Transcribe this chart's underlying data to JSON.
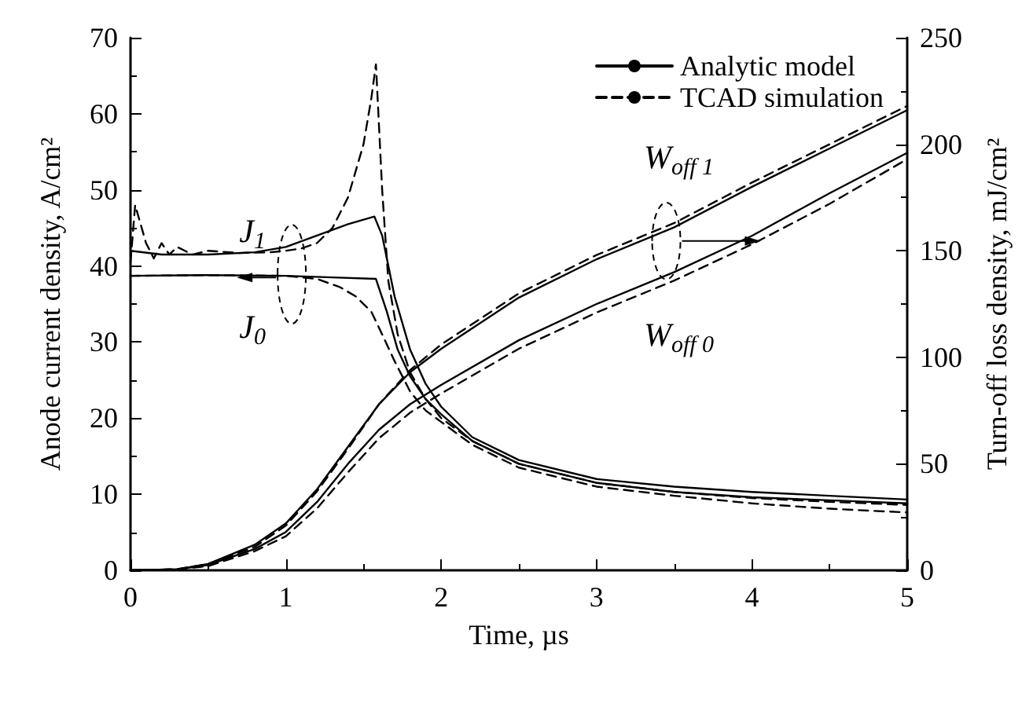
{
  "chart_data": {
    "type": "line",
    "xlabel": "Time, µs",
    "ylabel": "Anode current density, A/cm²",
    "y2label": "Turn-off loss density, mJ/cm²",
    "xlim": [
      0,
      5
    ],
    "xticks": [
      0,
      1,
      2,
      3,
      4,
      5
    ],
    "ylim": [
      0,
      70
    ],
    "yticks": [
      0,
      10,
      20,
      30,
      40,
      50,
      60,
      70
    ],
    "y2lim": [
      0,
      250
    ],
    "y2ticks": [
      0,
      50,
      100,
      150,
      200,
      250
    ],
    "grid": false,
    "legend": "top right",
    "marker": "none",
    "annotations": [
      "J$_{1}$",
      "J$_{0}$",
      "W$_{off 1}$",
      "W$_{off 0}$"
    ],
    "series": [
      {
        "name": "Analytic model",
        "color": "#000000",
        "line_style": "solid",
        "x": [
          0,
          0.2,
          0.5,
          0.8,
          1.0,
          1.2,
          1.4,
          1.57,
          1.62,
          1.7,
          1.8,
          1.9,
          2.0,
          2.2,
          2.5,
          3,
          3.5,
          4,
          4.5,
          5
        ],
        "values": [
          42,
          41.5,
          41.5,
          41.8,
          42.5,
          44,
          45.5,
          46.5,
          44,
          36,
          29,
          24.5,
          21.5,
          17.5,
          14.5,
          12,
          11,
          10.3,
          9.8,
          9.3
        ]
      },
      {
        "name": "TCAD simulation",
        "color": "#000000",
        "line_style": "dashed",
        "x": [
          0,
          0.03,
          0.1,
          0.15,
          0.2,
          0.25,
          0.3,
          0.4,
          0.5,
          0.7,
          0.9,
          1.0,
          1.1,
          1.2,
          1.3,
          1.4,
          1.5,
          1.55,
          1.58,
          1.62,
          1.66,
          1.72,
          1.8,
          1.9,
          2.0,
          2.2,
          2.5,
          3,
          3.5,
          4,
          4.5,
          5
        ],
        "values": [
          40.5,
          48,
          43,
          41,
          43,
          41.5,
          42.5,
          41.5,
          42,
          41.7,
          41.8,
          42,
          42.3,
          43,
          45,
          49,
          56,
          62,
          66.5,
          50,
          38,
          31,
          26,
          22.5,
          20,
          17,
          14,
          11.5,
          10.3,
          9.5,
          9,
          8.6
        ]
      },
      {
        "color": "#000000",
        "line_style": "solid",
        "x": [
          0,
          0.5,
          1.0,
          1.3,
          1.58,
          1.65,
          1.72,
          1.8,
          1.9,
          2.0,
          2.2,
          2.5,
          3,
          3.5,
          4,
          4.5,
          5
        ],
        "values": [
          38.7,
          38.8,
          38.7,
          38.5,
          38.3,
          34,
          29,
          25.5,
          22.5,
          20.5,
          17,
          14,
          11.5,
          10.3,
          9.6,
          9.2,
          8.8
        ]
      },
      {
        "color": "#000000",
        "line_style": "dashed",
        "x": [
          0,
          0.5,
          1.0,
          1.2,
          1.35,
          1.45,
          1.55,
          1.62,
          1.7,
          1.8,
          1.9,
          2.0,
          2.2,
          2.5,
          3,
          3.5,
          4,
          4.5,
          5
        ],
        "values": [
          38.7,
          38.8,
          38.7,
          38.3,
          37.2,
          36,
          34,
          31,
          27.5,
          23.5,
          21,
          19.5,
          16.5,
          13.5,
          11,
          9.8,
          8.8,
          8.1,
          7.6
        ]
      },
      {
        "color": "#000000",
        "line_style": "solid",
        "axis": "y2",
        "x": [
          0,
          0.3,
          0.5,
          0.8,
          1.0,
          1.2,
          1.4,
          1.6,
          1.8,
          2.0,
          2.5,
          3,
          3.5,
          4,
          4.5,
          5
        ],
        "values": [
          0,
          0.5,
          3,
          12,
          22,
          38,
          58,
          78,
          93,
          104,
          128,
          146,
          161,
          180,
          198,
          216
        ]
      },
      {
        "color": "#000000",
        "line_style": "dashed",
        "axis": "y2",
        "x": [
          0,
          0.3,
          0.5,
          0.8,
          1.0,
          1.2,
          1.4,
          1.6,
          1.8,
          2.0,
          2.5,
          3,
          3.5,
          4,
          4.5,
          5
        ],
        "values": [
          0,
          0.5,
          3,
          11,
          21,
          37,
          57,
          78,
          94,
          106,
          130,
          148,
          163,
          182,
          200,
          218
        ]
      },
      {
        "color": "#000000",
        "line_style": "solid",
        "axis": "y2",
        "x": [
          0,
          0.3,
          0.5,
          0.8,
          1.0,
          1.2,
          1.4,
          1.6,
          1.8,
          2.0,
          2.5,
          3,
          3.5,
          4,
          4.5,
          5
        ],
        "values": [
          0,
          0.5,
          2.5,
          10,
          18,
          32,
          50,
          66,
          78,
          87,
          108,
          125,
          140,
          157,
          177,
          196
        ]
      },
      {
        "color": "#000000",
        "line_style": "dashed",
        "axis": "y2",
        "x": [
          0,
          0.3,
          0.5,
          0.8,
          1.0,
          1.2,
          1.4,
          1.6,
          1.8,
          2.0,
          2.5,
          3,
          3.5,
          4,
          4.5,
          5
        ],
        "values": [
          0,
          0.4,
          2,
          9,
          16,
          29,
          46,
          62,
          74,
          83,
          104,
          121,
          136,
          153,
          172,
          193
        ]
      }
    ]
  }
}
